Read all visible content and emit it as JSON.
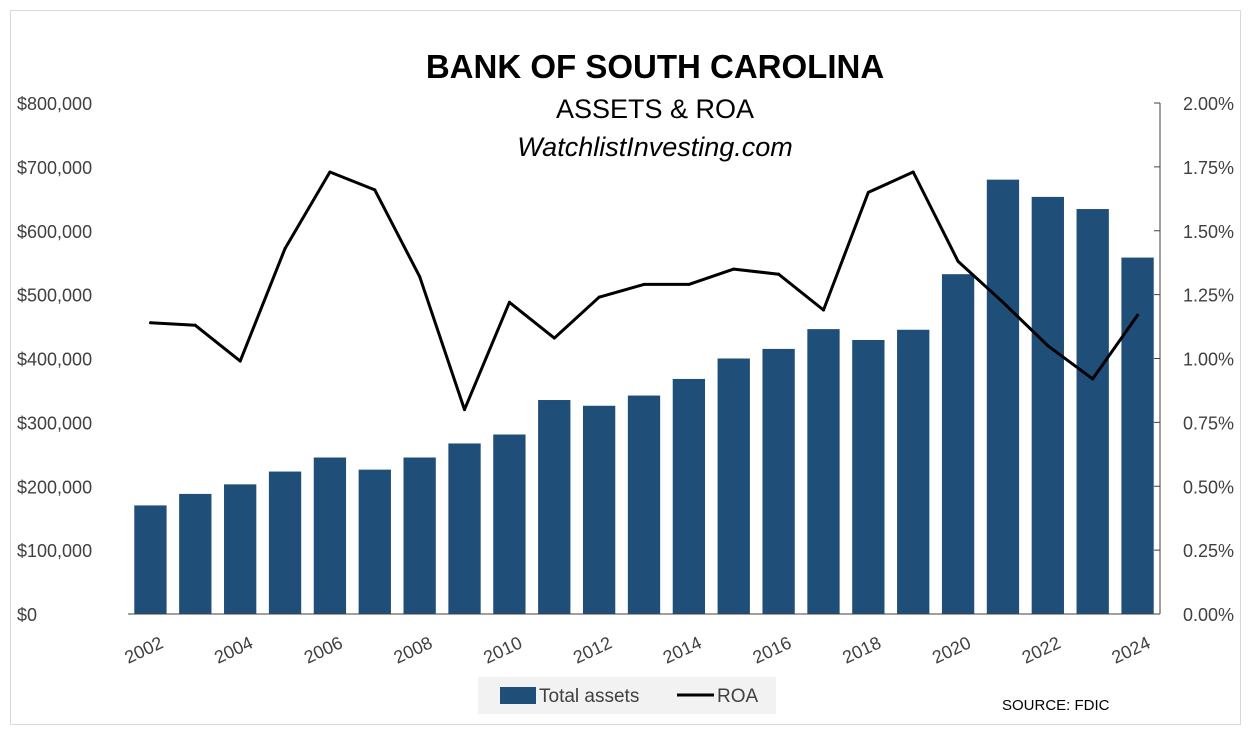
{
  "chart_data": {
    "type": "bar",
    "title": "BANK OF SOUTH CAROLINA",
    "subtitle": "ASSETS & ROA",
    "website": "WatchlistInvesting.com",
    "source": "SOURCE: FDIC",
    "categories": [
      "2002",
      "2003",
      "2004",
      "2005",
      "2006",
      "2007",
      "2008",
      "2009",
      "2010",
      "2011",
      "2012",
      "2013",
      "2014",
      "2015",
      "2016",
      "2017",
      "2018",
      "2019",
      "2020",
      "2021",
      "2022",
      "2023",
      "2024"
    ],
    "x_tick_labels": [
      "2002",
      "2004",
      "2006",
      "2008",
      "2010",
      "2012",
      "2014",
      "2016",
      "2018",
      "2020",
      "2022",
      "2024"
    ],
    "series": [
      {
        "name": "Total assets",
        "type": "bar",
        "axis": "left",
        "color": "#1f4e79",
        "values": [
          170000,
          188000,
          203000,
          223000,
          245000,
          226000,
          245000,
          267000,
          281000,
          335000,
          326000,
          342000,
          368000,
          400000,
          415000,
          446000,
          429000,
          445000,
          532000,
          680000,
          653000,
          634000,
          558000
        ]
      },
      {
        "name": "ROA",
        "type": "line",
        "axis": "right",
        "color": "#000000",
        "values": [
          1.14,
          1.13,
          0.99,
          1.43,
          1.73,
          1.66,
          1.32,
          0.8,
          1.22,
          1.08,
          1.24,
          1.29,
          1.29,
          1.35,
          1.33,
          1.19,
          1.65,
          1.73,
          1.38,
          1.22,
          1.05,
          0.92,
          1.17
        ]
      }
    ],
    "y_left": {
      "range": [
        0,
        800000
      ],
      "tick_labels": [
        "$0",
        "$100,000",
        "$200,000",
        "$300,000",
        "$400,000",
        "$500,000",
        "$600,000",
        "$700,000",
        "$800,000"
      ]
    },
    "y_right": {
      "range": [
        0,
        2.0
      ],
      "tick_labels": [
        "0.00%",
        "0.25%",
        "0.50%",
        "0.75%",
        "1.00%",
        "1.25%",
        "1.50%",
        "1.75%",
        "2.00%"
      ]
    },
    "legend": {
      "position": "bottom",
      "items": [
        "Total assets",
        "ROA"
      ]
    },
    "grid": false
  }
}
